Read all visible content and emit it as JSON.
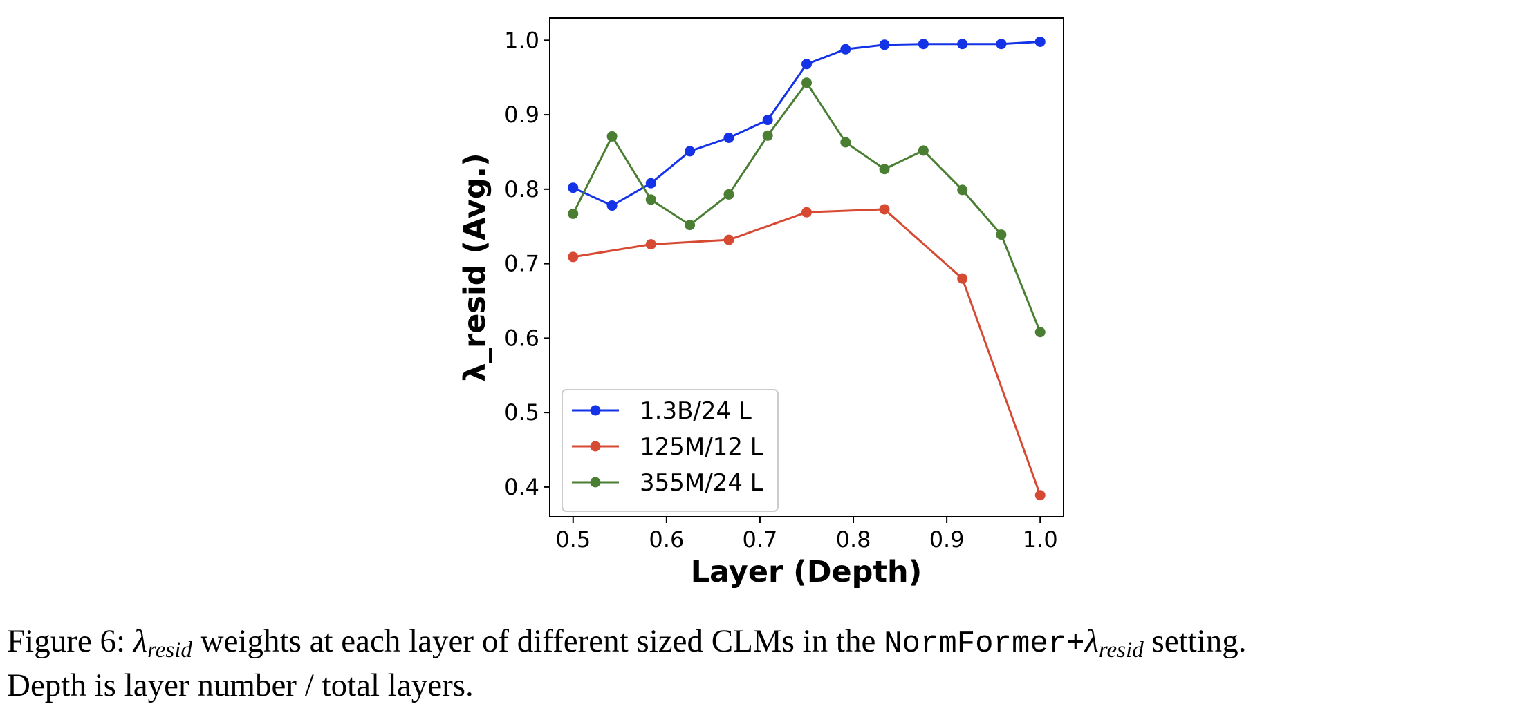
{
  "chart_data": {
    "type": "line",
    "title": "",
    "xlabel": "Layer (Depth)",
    "ylabel": "λ_resid (Avg.)",
    "xlim": [
      0.475,
      1.025
    ],
    "ylim": [
      0.36,
      1.03
    ],
    "xticks": [
      0.5,
      0.6,
      0.7,
      0.8,
      0.9,
      1.0
    ],
    "xtick_labels": [
      "0.5",
      "0.6",
      "0.7",
      "0.8",
      "0.9",
      "1.0"
    ],
    "yticks": [
      0.4,
      0.5,
      0.6,
      0.7,
      0.8,
      0.9,
      1.0
    ],
    "ytick_labels": [
      "0.4",
      "0.5",
      "0.6",
      "0.7",
      "0.8",
      "0.9",
      "1.0"
    ],
    "grid": false,
    "legend_position": "lower-left",
    "series": [
      {
        "name": "1.3B/24 L",
        "color": "#1432e6",
        "x": [
          0.5,
          0.5417,
          0.5833,
          0.625,
          0.6667,
          0.7083,
          0.75,
          0.7917,
          0.8333,
          0.875,
          0.9167,
          0.9583,
          1.0
        ],
        "y": [
          0.802,
          0.778,
          0.808,
          0.851,
          0.869,
          0.893,
          0.968,
          0.988,
          0.994,
          0.995,
          0.995,
          0.995,
          0.998
        ]
      },
      {
        "name": "125M/12 L",
        "color": "#d64a34",
        "x": [
          0.5,
          0.5833,
          0.6667,
          0.75,
          0.8333,
          0.9167,
          1.0
        ],
        "y": [
          0.709,
          0.726,
          0.732,
          0.769,
          0.773,
          0.68,
          0.389
        ]
      },
      {
        "name": "355M/24 L",
        "color": "#4a7e33",
        "x": [
          0.5,
          0.5417,
          0.5833,
          0.625,
          0.6667,
          0.7083,
          0.75,
          0.7917,
          0.8333,
          0.875,
          0.9167,
          0.9583,
          1.0
        ],
        "y": [
          0.767,
          0.871,
          0.786,
          0.752,
          0.793,
          0.872,
          0.943,
          0.863,
          0.827,
          0.852,
          0.799,
          0.739,
          0.608
        ]
      }
    ]
  },
  "caption": {
    "prefix": "Figure 6: ",
    "lambda": "λ",
    "sub": "resid",
    "mid": " weights at each layer of different sized CLMs in the ",
    "mono": "NormFormer+",
    "lambda2": "λ",
    "sub2": "resid",
    "suffix": " setting.",
    "line2": "Depth is layer number / total layers."
  }
}
